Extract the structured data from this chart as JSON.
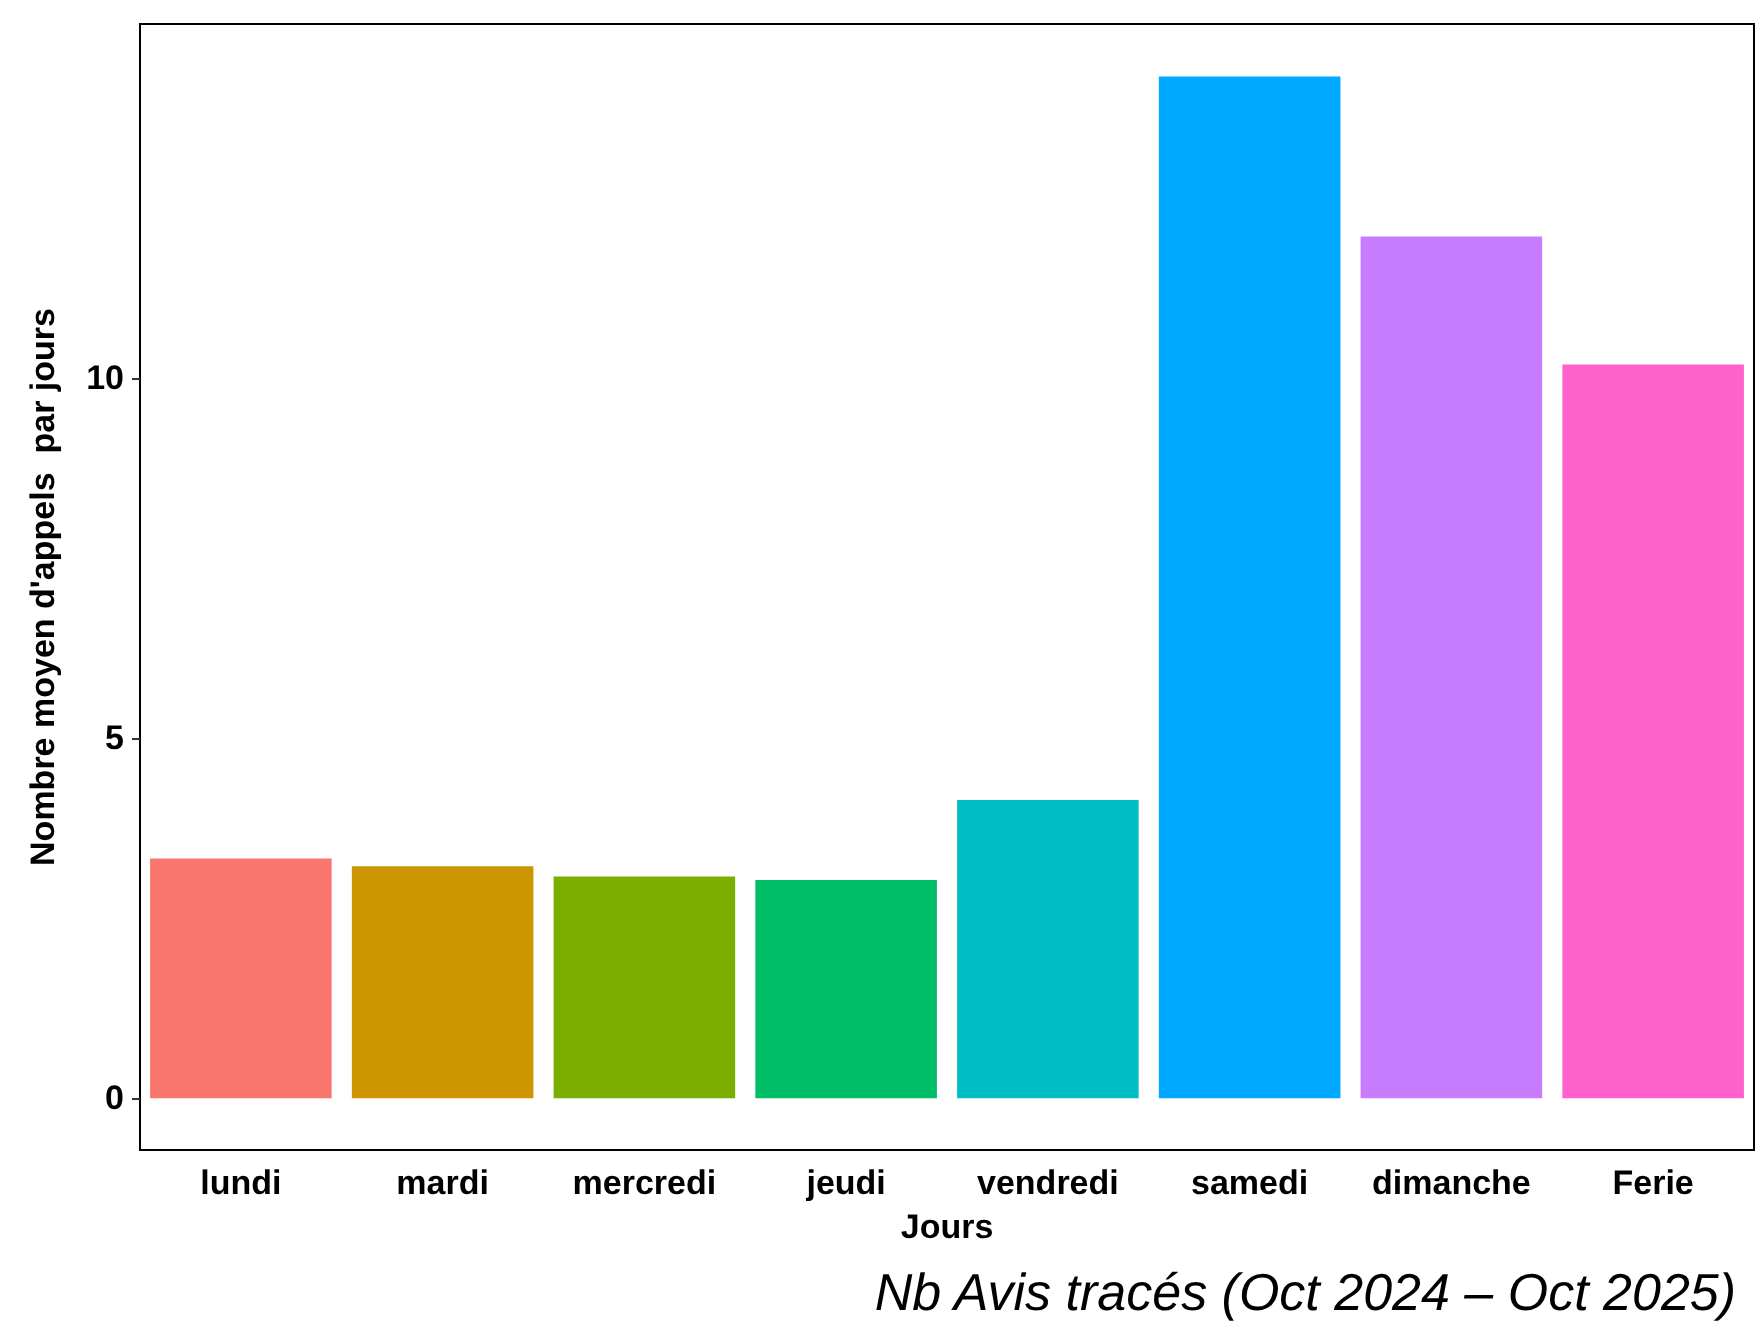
{
  "chart_data": {
    "type": "bar",
    "xlabel": "Jours",
    "ylabel": "Nombre moyen d'appels  par jours",
    "categories": [
      "lundi",
      "mardi",
      "mercredi",
      "jeudi",
      "vendredi",
      "samedi",
      "dimanche",
      "Ferie"
    ],
    "values": [
      3.33,
      3.22,
      3.08,
      3.03,
      4.14,
      14.19,
      11.97,
      10.19
    ],
    "colors": [
      "#f8766d",
      "#cd9600",
      "#7cae00",
      "#00be67",
      "#00bfc4",
      "#00a9ff",
      "#c77cff",
      "#ff61cc"
    ],
    "ylim": [
      -0.72,
      14.92
    ],
    "yticks": [
      0,
      5,
      10
    ],
    "grid": false,
    "annotations": [
      "Nb Avis tracés (Oct 2024 – Oct 2025)"
    ]
  }
}
